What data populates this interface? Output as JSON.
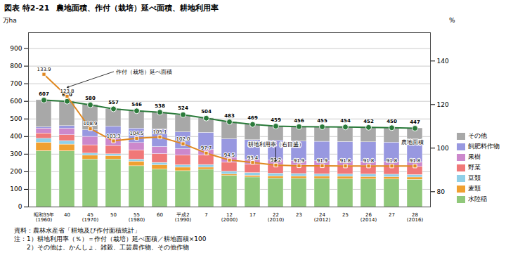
{
  "chart_data": {
    "type": "bar",
    "stacked": true,
    "figure_label": "図表 特2-21",
    "title": "農地面積、作付（栽培）延べ面積、耕地利用率",
    "categories": [
      "昭和35年\n(1960)",
      "40",
      "45\n(1970)",
      "50",
      "55\n(1980)",
      "60",
      "平成2\n(1990)",
      "7",
      "12\n(2000)",
      "17",
      "22\n(2010)",
      "23",
      "24\n(2012)",
      "25",
      "26\n(2014)",
      "27",
      "28\n(2016)"
    ],
    "series": [
      {
        "name": "水陸稲",
        "color": "#90c87a",
        "values": [
          318,
          317,
          270,
          270,
          232,
          213,
          204,
          212,
          177,
          168,
          162,
          161,
          160,
          159,
          158,
          157,
          155
        ]
      },
      {
        "name": "麦類",
        "color": "#f0a030",
        "values": [
          48,
          38,
          22,
          20,
          26,
          25,
          20,
          12,
          9,
          10,
          13,
          13,
          13,
          13,
          13,
          13,
          13
        ]
      },
      {
        "name": "豆類",
        "color": "#90d0e8",
        "values": [
          22,
          20,
          12,
          10,
          12,
          13,
          14,
          15,
          15,
          15,
          15,
          14,
          14,
          14,
          14,
          14,
          14
        ]
      },
      {
        "name": "野菜",
        "color": "#f07878",
        "values": [
          30,
          33,
          47,
          47,
          52,
          50,
          54,
          54,
          51,
          49,
          48,
          48,
          48,
          48,
          48,
          47,
          47
        ]
      },
      {
        "name": "果樹",
        "color": "#cc88cc",
        "values": [
          28,
          37,
          48,
          48,
          42,
          40,
          37,
          33,
          28,
          26,
          26,
          26,
          26,
          26,
          25,
          25,
          25
        ]
      },
      {
        "name": "飼肥料作物",
        "color": "#9898e0",
        "values": [
          8,
          15,
          38,
          62,
          82,
          100,
          96,
          96,
          106,
          112,
          113,
          110,
          110,
          110,
          110,
          110,
          110
        ]
      },
      {
        "name": "その他",
        "color": "#a8a8a8",
        "values": [
          153,
          140,
          143,
          100,
          100,
          97,
          95,
          82,
          97,
          89,
          82,
          84,
          84,
          84,
          84,
          84,
          83
        ]
      },
      {
        "name": "農地面積",
        "type": "line",
        "color": "#2a7a3a",
        "marker": "circle",
        "data_labels": true,
        "values": [
          607,
          600,
          580,
          557,
          546,
          538,
          524,
          504,
          483,
          469,
          459,
          456,
          455,
          454,
          452,
          450,
          447
        ]
      },
      {
        "name": "耕地利用率（右目盛）",
        "type": "line",
        "axis": "y2",
        "color": "#e08820",
        "marker": "square",
        "data_labels": true,
        "values": [
          133.9,
          123.8,
          108.9,
          103.3,
          104.5,
          105.1,
          102.0,
          97.7,
          94.5,
          93.4,
          92.2,
          91.9,
          91.9,
          91.8,
          91.8,
          91.8,
          91.8
        ],
        "value_labels": [
          "133.9",
          "123.8",
          "108.9",
          "103.3",
          "104.5",
          "105.1",
          "102.0",
          "97.7",
          "94.5",
          "93.4",
          "92.2",
          "91.9",
          "91.9",
          "91.8",
          "91.8",
          "91.8",
          "91.8"
        ]
      }
    ],
    "ylabel": "万ha",
    "y2label": "%",
    "ylim": [
      0,
      990
    ],
    "yticks": [
      0,
      100,
      200,
      300,
      400,
      500,
      600,
      700,
      800,
      900
    ],
    "y2lim": [
      73,
      153
    ],
    "y2ticks": [
      80,
      100,
      120,
      140
    ],
    "grid": true,
    "legend": "right",
    "annotations": [
      {
        "text": "作付（栽培）延べ面積"
      }
    ],
    "notes": [
      "資料：農林水産省「耕地及び作付面積統計」",
      "注：1）耕地利用率（％）＝作付（栽培）延べ面積／耕地面積×100",
      "　　2）その他は、かんしょ、雑穀、工芸農作物、その他作物"
    ]
  }
}
